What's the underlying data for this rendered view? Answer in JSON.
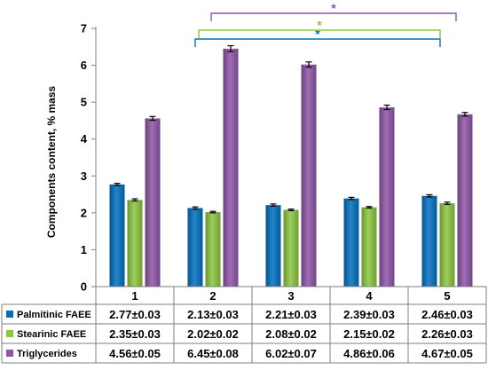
{
  "chart_data": {
    "type": "bar",
    "ylabel": "Components content, % mass",
    "ylim": [
      0,
      7
    ],
    "yticks": [
      "0",
      "1",
      "2",
      "3",
      "4",
      "5",
      "6",
      "7"
    ],
    "categories": [
      "1",
      "2",
      "3",
      "4",
      "5"
    ],
    "grid": false,
    "legend": "table-left",
    "series": [
      {
        "name": "Palmitinic FAEE",
        "color": "#0070c0",
        "values": [
          2.77,
          2.13,
          2.21,
          2.39,
          2.46
        ],
        "errors": [
          0.03,
          0.03,
          0.03,
          0.03,
          0.03
        ],
        "labels": [
          "2.77±0.03",
          "2.13±0.03",
          "2.21±0.03",
          "2.39±0.03",
          "2.46±0.03"
        ]
      },
      {
        "name": "Stearinic  FAEE",
        "color": "#8cc63f",
        "values": [
          2.35,
          2.02,
          2.08,
          2.15,
          2.26
        ],
        "errors": [
          0.03,
          0.02,
          0.02,
          0.02,
          0.03
        ],
        "labels": [
          "2.35±0.03",
          "2.02±0.02",
          "2.08±0.02",
          "2.15±0.02",
          "2.26±0.03"
        ]
      },
      {
        "name": "Triglycerides",
        "color": "#8e55a8",
        "values": [
          4.56,
          6.45,
          6.02,
          4.86,
          4.67
        ],
        "errors": [
          0.05,
          0.08,
          0.07,
          0.06,
          0.05
        ],
        "labels": [
          "4.56±0.05",
          "6.45±0.08",
          "6.02±0.07",
          "4.86±0.06",
          "4.67±0.05"
        ]
      }
    ],
    "annotations": [
      {
        "text": "*",
        "from_category": "2",
        "to_category": "5",
        "color": "#0070c0",
        "level": 1
      },
      {
        "text": "*",
        "from_category": "3",
        "to_category": "5",
        "color": "#8cc63f",
        "level": 2
      },
      {
        "text": "*",
        "from_category": "3",
        "to_category": "5",
        "color": "#8e55a8",
        "level": 3
      }
    ]
  }
}
